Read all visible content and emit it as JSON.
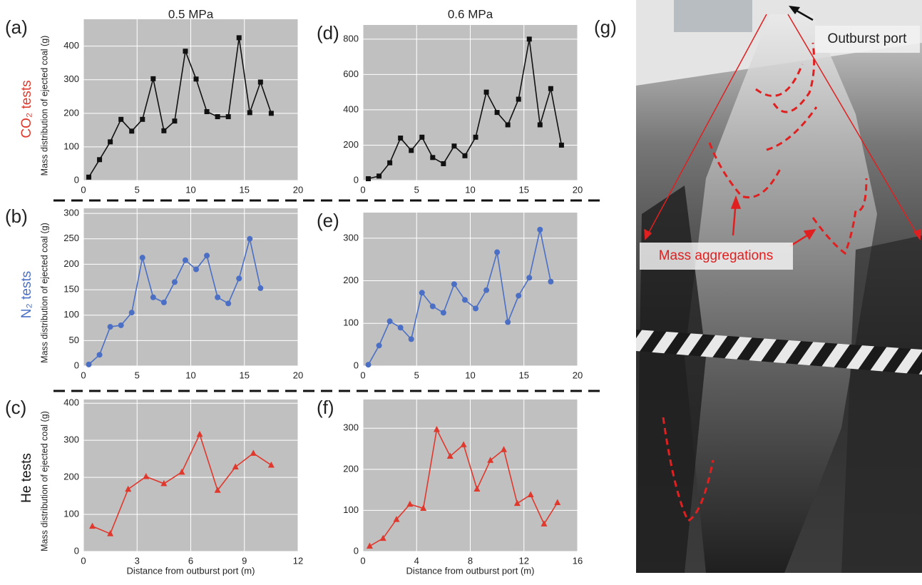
{
  "chart_data": [
    {
      "type": "line",
      "label": "(a)",
      "title": "0.5 MPa",
      "ylabel": "Mass distribution of ejected coal (g)",
      "color": "#111111",
      "marker": "square",
      "x": [
        0.5,
        1.5,
        2.5,
        3.5,
        4.5,
        5.5,
        6.5,
        7.5,
        8.5,
        9.5,
        10.5,
        11.5,
        12.5,
        13.5,
        14.5,
        15.5,
        16.5,
        17.5
      ],
      "values": [
        10,
        62,
        115,
        182,
        147,
        182,
        303,
        148,
        177,
        385,
        302,
        205,
        190,
        190,
        425,
        202,
        293,
        200
      ],
      "xlim": [
        0,
        20
      ],
      "xticks": [
        0,
        5,
        10,
        15,
        20
      ],
      "ylim": [
        0,
        480
      ],
      "yticks": [
        0,
        100,
        200,
        300,
        400
      ],
      "grid": true
    },
    {
      "type": "line",
      "label": "(d)",
      "title": "0.6 MPa",
      "color": "#111111",
      "marker": "square",
      "x": [
        0.5,
        1.5,
        2.5,
        3.5,
        4.5,
        5.5,
        6.5,
        7.5,
        8.5,
        9.5,
        10.5,
        11.5,
        12.5,
        13.5,
        14.5,
        15.5,
        16.5,
        17.5,
        18.5
      ],
      "values": [
        10,
        25,
        100,
        240,
        170,
        245,
        130,
        95,
        195,
        140,
        245,
        500,
        385,
        315,
        460,
        800,
        315,
        520,
        200
      ],
      "xlim": [
        0,
        20
      ],
      "xticks": [
        0,
        5,
        10,
        15,
        20
      ],
      "ylim": [
        0,
        880
      ],
      "yticks": [
        0,
        200,
        400,
        600,
        800
      ],
      "grid": true
    },
    {
      "type": "line",
      "label": "(b)",
      "ylabel": "Mass distribution of ejected coal (g)",
      "color": "#4a6fc4",
      "marker": "circle",
      "x": [
        0.5,
        1.5,
        2.5,
        3.5,
        4.5,
        5.5,
        6.5,
        7.5,
        8.5,
        9.5,
        10.5,
        11.5,
        12.5,
        13.5,
        14.5,
        15.5,
        16.5
      ],
      "values": [
        3,
        22,
        77,
        80,
        105,
        213,
        135,
        125,
        165,
        208,
        190,
        217,
        135,
        123,
        172,
        250,
        153
      ],
      "xlim": [
        0,
        20
      ],
      "xticks": [
        0,
        5,
        10,
        15,
        20
      ],
      "ylim": [
        0,
        310
      ],
      "yticks": [
        0,
        50,
        100,
        150,
        200,
        250,
        300
      ],
      "grid": true
    },
    {
      "type": "line",
      "label": "(e)",
      "color": "#4a6fc4",
      "marker": "circle",
      "x": [
        0.5,
        1.5,
        2.5,
        3.5,
        4.5,
        5.5,
        6.5,
        7.5,
        8.5,
        9.5,
        10.5,
        11.5,
        12.5,
        13.5,
        14.5,
        15.5,
        16.5,
        17.5
      ],
      "values": [
        3,
        48,
        105,
        90,
        63,
        172,
        140,
        125,
        192,
        155,
        135,
        178,
        267,
        103,
        165,
        207,
        320,
        198
      ],
      "xlim": [
        0,
        20
      ],
      "xticks": [
        0,
        5,
        10,
        15,
        20
      ],
      "ylim": [
        0,
        360
      ],
      "yticks": [
        0,
        100,
        200,
        300
      ],
      "grid": true
    },
    {
      "type": "line",
      "label": "(c)",
      "ylabel": "Mass distribution of ejected coal (g)",
      "xlabel": "Distance from outburst port (m)",
      "color": "#e0382c",
      "marker": "triangle",
      "x": [
        0.5,
        1.5,
        2.5,
        3.5,
        4.5,
        5.5,
        6.5,
        7.5,
        8.5,
        9.5,
        10.5
      ],
      "values": [
        68,
        48,
        168,
        202,
        183,
        214,
        316,
        165,
        228,
        265,
        233
      ],
      "xlim": [
        0,
        12
      ],
      "xticks": [
        0,
        3,
        6,
        9,
        12
      ],
      "ylim": [
        0,
        410
      ],
      "yticks": [
        0,
        100,
        200,
        300,
        400
      ],
      "grid": true
    },
    {
      "type": "line",
      "label": "(f)",
      "xlabel": "Distance from outburst port (m)",
      "color": "#e0382c",
      "marker": "triangle",
      "x": [
        0.5,
        1.5,
        2.5,
        3.5,
        4.5,
        5.5,
        6.5,
        7.5,
        8.5,
        9.5,
        10.5,
        11.5,
        12.5,
        13.5,
        14.5
      ],
      "values": [
        13,
        32,
        78,
        115,
        105,
        297,
        232,
        260,
        152,
        222,
        248,
        117,
        138,
        67,
        119
      ],
      "xlim": [
        0,
        16
      ],
      "xticks": [
        0,
        4,
        8,
        12,
        16
      ],
      "ylim": [
        0,
        370
      ],
      "yticks": [
        0,
        100,
        200,
        300
      ],
      "grid": true
    }
  ],
  "rows": [
    {
      "label": "CO₂ tests",
      "color": "#e0382c"
    },
    {
      "label": "N₂ tests",
      "color": "#4a6fc4"
    },
    {
      "label": "He tests",
      "color": "#111111"
    }
  ],
  "photo": {
    "label": "(g)",
    "annotations": [
      "Outburst port",
      "Mass aggregations"
    ]
  }
}
